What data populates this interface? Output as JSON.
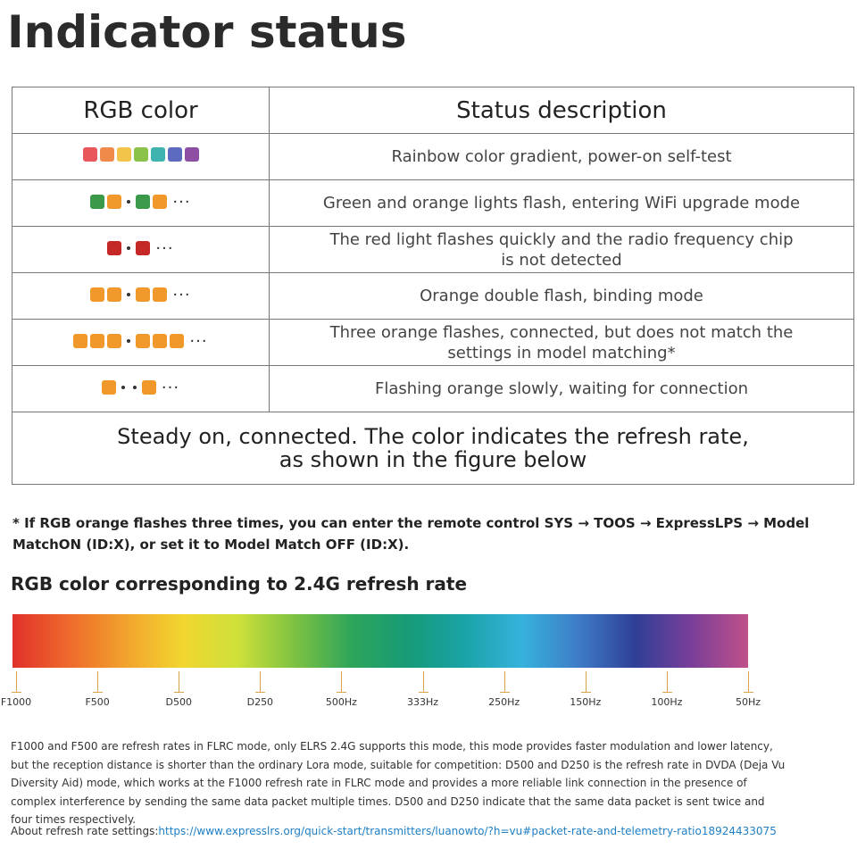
{
  "title": "Indicator status",
  "table": {
    "headers": [
      "RGB color",
      "Status description"
    ],
    "rows": [
      {
        "description": "Rainbow color gradient, power-on self-test",
        "pattern": [
          {
            "t": "sq",
            "c": "#e8575a"
          },
          {
            "t": "sq",
            "c": "#f08a4b"
          },
          {
            "t": "sq",
            "c": "#f3c44a"
          },
          {
            "t": "sq",
            "c": "#8bc34a"
          },
          {
            "t": "sq",
            "c": "#3fb3b0"
          },
          {
            "t": "sq",
            "c": "#5c6bc0"
          },
          {
            "t": "sq",
            "c": "#8e4ea3"
          }
        ]
      },
      {
        "description": "Green and orange lights flash, entering WiFi upgrade mode",
        "pattern": [
          {
            "t": "sq",
            "c": "#3a9a4a"
          },
          {
            "t": "sq",
            "c": "#f0992a"
          },
          {
            "t": "dot"
          },
          {
            "t": "sq",
            "c": "#3a9a4a"
          },
          {
            "t": "sq",
            "c": "#f0992a"
          },
          {
            "t": "ell"
          }
        ]
      },
      {
        "description": "The red light flashes quickly and the radio frequency chip",
        "description2": "is not detected",
        "pattern": [
          {
            "t": "sq",
            "c": "#c62828"
          },
          {
            "t": "dot"
          },
          {
            "t": "sq",
            "c": "#c62828"
          },
          {
            "t": "ell"
          }
        ]
      },
      {
        "description": "Orange double flash, binding mode",
        "pattern": [
          {
            "t": "sq",
            "c": "#f0992a"
          },
          {
            "t": "sq",
            "c": "#f0992a"
          },
          {
            "t": "dot"
          },
          {
            "t": "sq",
            "c": "#f0992a"
          },
          {
            "t": "sq",
            "c": "#f0992a"
          },
          {
            "t": "ell"
          }
        ]
      },
      {
        "description": "Three orange flashes, connected, but does not match the",
        "description2": "settings in model matching*",
        "pattern": [
          {
            "t": "sq",
            "c": "#f0992a"
          },
          {
            "t": "sq",
            "c": "#f0992a"
          },
          {
            "t": "sq",
            "c": "#f0992a"
          },
          {
            "t": "dot"
          },
          {
            "t": "sq",
            "c": "#f0992a"
          },
          {
            "t": "sq",
            "c": "#f0992a"
          },
          {
            "t": "sq",
            "c": "#f0992a"
          },
          {
            "t": "ell"
          }
        ]
      },
      {
        "description": "Flashing orange slowly, waiting for connection",
        "pattern": [
          {
            "t": "sq",
            "c": "#f0992a"
          },
          {
            "t": "dot"
          },
          {
            "t": "dot"
          },
          {
            "t": "sq",
            "c": "#f0992a"
          },
          {
            "t": "ell"
          }
        ]
      }
    ],
    "footer_line1": "Steady on, connected. The color indicates the refresh rate,",
    "footer_line2": "as shown in the figure below",
    "ellipsis": "···"
  },
  "note": "* If RGB orange flashes three times, you can enter the remote control SYS → TOOS → ExpressLPS → Model MatchON (ID:X), or set it to Model Match OFF (ID:X).",
  "refresh": {
    "heading": "RGB color corresponding to 2.4G refresh rate",
    "gradient_colors": [
      "#e0312b",
      "#ee6a2c",
      "#f2a22d",
      "#f1d62f",
      "#cde03a",
      "#7cc142",
      "#2ea55a",
      "#169a78",
      "#1aa3a8",
      "#36b2dc",
      "#3e7cc7",
      "#2f3f97",
      "#7a3f98",
      "#c0508a"
    ],
    "labels": [
      "F1000",
      "F500",
      "D500",
      "D250",
      "500Hz",
      "333Hz",
      "250Hz",
      "150Hz",
      "100Hz",
      "50Hz"
    ]
  },
  "paragraph": "F1000 and F500 are refresh rates in FLRC mode, only ELRS 2.4G supports this mode, this mode provides faster modulation and lower latency, but the reception distance is shorter than the ordinary Lora mode, suitable for competition: D500 and D250 is the refresh rate in DVDA (Deja Vu Diversity Aid) mode, which works at the F1000 refresh rate in FLRC mode and provides a more reliable link connection in the presence of complex interference by sending the same data packet multiple times. D500 and D250 indicate that the same data packet is sent twice and four times respectively.",
  "about": {
    "label": "About refresh rate settings:",
    "url": "https://www.expresslrs.org/quick-start/transmitters/luanowto/?h=vu#packet-rate-and-telemetry-ratio18924433075"
  }
}
